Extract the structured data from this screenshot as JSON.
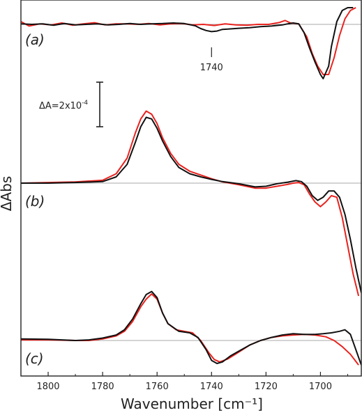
{
  "chart_data": {
    "type": "line",
    "xlabel": "Wavenumber [cm⁻¹]",
    "ylabel": "ΔAbs",
    "xlim": [
      1810,
      1685
    ],
    "x_reversed": true,
    "x_ticks": [
      1800,
      1780,
      1760,
      1740,
      1720,
      1700
    ],
    "x_tick_labels": [
      "1800",
      "1780",
      "1760",
      "1740",
      "1720",
      "1700"
    ],
    "y_ticks_shown": false,
    "scale_bar_label": "ΔA=2x10",
    "scale_bar_exponent": "-4",
    "scale_bar_value": 0.0002,
    "annotation": {
      "text": "1740",
      "x": 1740,
      "panel": "a"
    },
    "series_colors": {
      "black": "#111111",
      "red": "#e8221e"
    },
    "panels": [
      {
        "label": "(a)",
        "label_letter": "a",
        "baseline": 0,
        "series": [
          {
            "color": "black",
            "x": [
              1810,
              1806,
              1802,
              1798,
              1794,
              1790,
              1786,
              1782,
              1778,
              1774,
              1770,
              1766,
              1762,
              1758,
              1754,
              1750,
              1746,
              1744,
              1742,
              1740,
              1738,
              1736,
              1734,
              1730,
              1726,
              1722,
              1718,
              1714,
              1712,
              1710,
              1708,
              1706,
              1704,
              1702,
              1700,
              1699,
              1697,
              1696,
              1694,
              1692,
              1690,
              1688
            ],
            "y": [
              0.02,
              0.0,
              0.02,
              -0.03,
              0.03,
              -0.02,
              0.0,
              0.02,
              -0.02,
              0.0,
              0.03,
              0.0,
              0.02,
              0.03,
              0.05,
              0.03,
              -0.05,
              -0.15,
              -0.22,
              -0.26,
              -0.24,
              -0.18,
              -0.17,
              -0.14,
              -0.12,
              -0.08,
              -0.06,
              -0.02,
              0.02,
              0.05,
              0.02,
              -0.3,
              -0.85,
              -1.35,
              -1.8,
              -1.95,
              -1.5,
              -0.8,
              0.1,
              0.5,
              0.6,
              0.6
            ]
          },
          {
            "color": "red",
            "x": [
              1810,
              1807,
              1803,
              1799,
              1795,
              1791,
              1787,
              1783,
              1779,
              1775,
              1771,
              1767,
              1763,
              1759,
              1755,
              1751,
              1747,
              1743,
              1739,
              1735,
              1731,
              1727,
              1723,
              1719,
              1715,
              1713,
              1711,
              1708,
              1705,
              1703,
              1701,
              1699,
              1697,
              1695,
              1693,
              1691,
              1689,
              1687
            ],
            "y": [
              0.1,
              -0.06,
              0.02,
              -0.02,
              0.05,
              -0.03,
              0.02,
              0.06,
              -0.02,
              0.02,
              0.02,
              0.0,
              0.03,
              -0.02,
              0.02,
              0.03,
              -0.02,
              0.0,
              -0.04,
              0.02,
              -0.02,
              -0.03,
              0.0,
              0.0,
              0.07,
              0.14,
              0.05,
              0.02,
              -0.45,
              -1.05,
              -1.5,
              -1.8,
              -1.8,
              -1.2,
              -0.4,
              0.2,
              0.5,
              0.6
            ]
          }
        ]
      },
      {
        "label": "(b)",
        "label_letter": "b",
        "baseline": 0,
        "series": [
          {
            "color": "black",
            "x": [
              1810,
              1800,
              1790,
              1780,
              1775,
              1771,
              1768,
              1766,
              1764,
              1762,
              1760,
              1758,
              1755,
              1752,
              1748,
              1744,
              1740,
              1736,
              1730,
              1724,
              1720,
              1716,
              1712,
              1709,
              1707,
              1705,
              1703,
              1701,
              1699,
              1697,
              1695,
              1693,
              1691,
              1689,
              1687,
              1685
            ],
            "y": [
              0.0,
              0.0,
              0.02,
              0.05,
              0.2,
              0.6,
              1.3,
              1.8,
              2.1,
              2.05,
              1.75,
              1.35,
              0.85,
              0.5,
              0.3,
              0.2,
              0.12,
              0.05,
              -0.02,
              -0.12,
              -0.1,
              -0.02,
              0.03,
              0.08,
              0.05,
              -0.1,
              -0.4,
              -0.55,
              -0.45,
              -0.25,
              -0.25,
              -0.45,
              -1.0,
              -1.8,
              -2.7,
              -3.5
            ]
          },
          {
            "color": "red",
            "x": [
              1810,
              1800,
              1790,
              1780,
              1775,
              1771,
              1768,
              1766,
              1764,
              1762,
              1760,
              1758,
              1755,
              1752,
              1748,
              1744,
              1740,
              1736,
              1730,
              1724,
              1720,
              1716,
              1712,
              1710,
              1708,
              1706,
              1704,
              1702,
              1700,
              1698,
              1696,
              1694,
              1692,
              1690,
              1688,
              1686
            ],
            "y": [
              0.0,
              0.02,
              0.04,
              0.09,
              0.3,
              0.8,
              1.6,
              2.05,
              2.3,
              2.2,
              1.9,
              1.45,
              0.95,
              0.6,
              0.38,
              0.26,
              0.14,
              0.04,
              -0.05,
              -0.16,
              -0.16,
              -0.1,
              -0.04,
              0.0,
              0.02,
              -0.05,
              -0.35,
              -0.6,
              -0.75,
              -0.6,
              -0.4,
              -0.45,
              -1.1,
              -2.0,
              -2.9,
              -3.6
            ]
          }
        ]
      },
      {
        "label": "(c)",
        "label_letter": "c",
        "baseline": 0,
        "series": [
          {
            "color": "black",
            "x": [
              1810,
              1800,
              1790,
              1785,
              1780,
              1775,
              1772,
              1769,
              1766,
              1764,
              1762,
              1760,
              1758,
              1756,
              1752,
              1748,
              1745,
              1742,
              1740,
              1738,
              1736,
              1733,
              1730,
              1726,
              1722,
              1718,
              1714,
              1710,
              1706,
              1702,
              1699,
              1696,
              1693,
              1691,
              1689,
              1687,
              1685
            ],
            "y": [
              0.05,
              0.04,
              0.0,
              0.02,
              0.08,
              0.18,
              0.35,
              0.7,
              1.2,
              1.5,
              1.6,
              1.4,
              0.9,
              0.55,
              0.3,
              0.25,
              0.1,
              -0.3,
              -0.65,
              -0.75,
              -0.7,
              -0.5,
              -0.35,
              -0.15,
              0.0,
              0.1,
              0.18,
              0.22,
              0.2,
              0.2,
              0.22,
              0.25,
              0.3,
              0.35,
              0.2,
              -0.3,
              -0.8
            ]
          },
          {
            "color": "red",
            "x": [
              1810,
              1800,
              1790,
              1785,
              1780,
              1775,
              1772,
              1769,
              1766,
              1764,
              1762,
              1760,
              1758,
              1756,
              1753,
              1750,
              1747,
              1744,
              1741,
              1739,
              1737,
              1734,
              1730,
              1726,
              1722,
              1718,
              1714,
              1710,
              1706,
              1702,
              1698,
              1695,
              1692,
              1689,
              1686
            ],
            "y": [
              0.02,
              0.02,
              0.0,
              0.0,
              0.05,
              0.15,
              0.3,
              0.62,
              1.1,
              1.35,
              1.52,
              1.35,
              0.9,
              0.55,
              0.35,
              0.3,
              0.25,
              0.0,
              -0.4,
              -0.62,
              -0.7,
              -0.6,
              -0.38,
              -0.15,
              0.0,
              0.1,
              0.15,
              0.18,
              0.2,
              0.18,
              0.12,
              0.0,
              -0.2,
              -0.45,
              -0.8
            ]
          }
        ]
      }
    ]
  }
}
